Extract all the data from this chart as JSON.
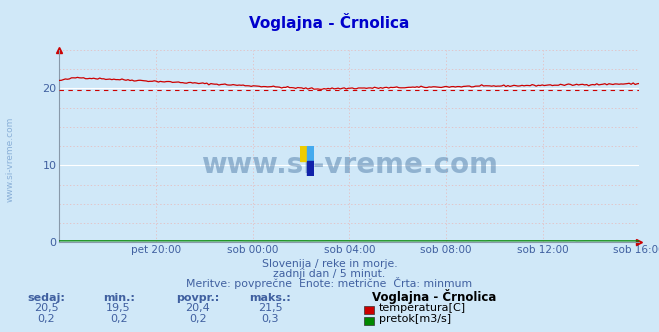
{
  "title": "Voglajna - Črnolica",
  "bg_color": "#d0e8f8",
  "plot_bg_color": "#d0e8f8",
  "grid_color_major": "#ffffff",
  "grid_color_minor": "#e8b8b8",
  "x_labels": [
    "pet 20:00",
    "sob 00:00",
    "sob 04:00",
    "sob 08:00",
    "sob 12:00",
    "sob 16:00"
  ],
  "y_min": 0,
  "y_max": 25,
  "y_ticks": [
    0,
    10,
    20
  ],
  "temp_color": "#cc0000",
  "flow_color": "#008800",
  "avg_line_color": "#cc0000",
  "avg_value": 19.8,
  "temp_min": 19.5,
  "temp_max": 21.5,
  "temp_avg": 20.4,
  "temp_current": 20.5,
  "flow_min": 0.2,
  "flow_max": 0.3,
  "flow_avg": 0.2,
  "flow_current": 0.2,
  "subtitle1": "Slovenija / reke in morje.",
  "subtitle2": "zadnji dan / 5 minut.",
  "subtitle3": "Meritve: povprečne  Enote: metrične  Črta: minmum",
  "watermark": "www.si-vreme.com",
  "watermark_color": "#4472a0",
  "label_color": "#4060a0",
  "title_color": "#0000cc",
  "sidebar_color": "#8ab0d8",
  "n_points": 288
}
